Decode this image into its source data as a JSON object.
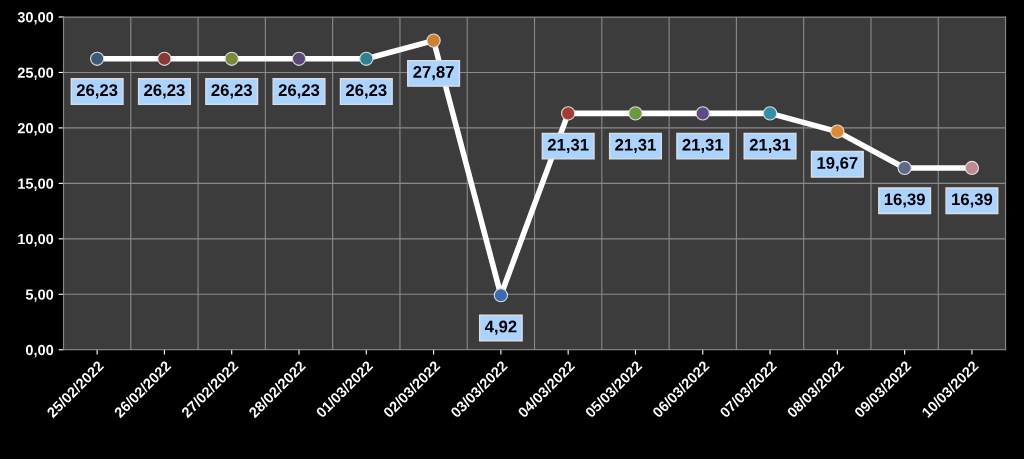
{
  "chart_data": {
    "type": "line",
    "categories": [
      "25/02/2022",
      "26/02/2022",
      "27/02/2022",
      "28/02/2022",
      "01/03/2022",
      "02/03/2022",
      "03/03/2022",
      "04/03/2022",
      "05/03/2022",
      "06/03/2022",
      "07/03/2022",
      "08/03/2022",
      "09/03/2022",
      "10/03/2022"
    ],
    "series": [
      {
        "color": "#ffffff",
        "values": [
          26.23,
          26.23,
          26.23,
          26.23,
          26.23,
          27.87,
          4.92,
          21.31,
          21.31,
          21.31,
          21.31,
          19.67,
          16.39,
          16.39
        ],
        "colors": [
          "#3b5a78",
          "#8a3a34",
          "#7a8a3c",
          "#5a4878",
          "#2f8090",
          "#d08030",
          "#3a6ab0",
          "#a83a34",
          "#6a9a40",
          "#5e4a88",
          "#3090a8",
          "#e08a30",
          "#5a6a88",
          "#c08a90"
        ],
        "value_labels": [
          "26,23",
          "26,23",
          "26,23",
          "26,23",
          "26,23",
          "27,87",
          "4,92",
          "21,31",
          "21,31",
          "21,31",
          "21,31",
          "19,67",
          "16,39",
          "16,39"
        ]
      }
    ],
    "ylim": [
      0,
      30
    ],
    "yticks": [
      {
        "value": 0,
        "label": "0,00"
      },
      {
        "value": 5,
        "label": "5,00"
      },
      {
        "value": 10,
        "label": "10,00"
      },
      {
        "value": 15,
        "label": "15,00"
      },
      {
        "value": 20,
        "label": "20,00"
      },
      {
        "value": 25,
        "label": "25,00"
      },
      {
        "value": 30,
        "label": "30,00"
      }
    ],
    "grid": true,
    "marker": "circle",
    "line_style": "solid"
  }
}
